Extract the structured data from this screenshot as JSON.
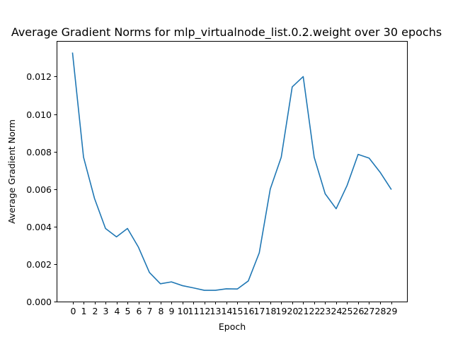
{
  "chart_data": {
    "type": "line",
    "title": "Average Gradient Norms for mlp_virtualnode_list.0.2.weight over 30 epochs",
    "xlabel": "Epoch",
    "ylabel": "Average Gradient Norm",
    "x": [
      0,
      1,
      2,
      3,
      4,
      5,
      6,
      7,
      8,
      9,
      10,
      11,
      12,
      13,
      14,
      15,
      16,
      17,
      18,
      19,
      20,
      21,
      22,
      23,
      24,
      25,
      26,
      27,
      28,
      29
    ],
    "x_tick_labels": [
      "0",
      "1",
      "2",
      "3",
      "4",
      "5",
      "6",
      "7",
      "8",
      "9",
      "10",
      "11",
      "12",
      "13",
      "14",
      "15",
      "16",
      "17",
      "18",
      "19",
      "20",
      "21",
      "22",
      "23",
      "24",
      "25",
      "26",
      "27",
      "28",
      "29"
    ],
    "y_ticks": [
      0.0,
      0.002,
      0.004,
      0.006,
      0.008,
      0.01,
      0.012
    ],
    "y_tick_labels": [
      "0.000",
      "0.002",
      "0.004",
      "0.006",
      "0.008",
      "0.010",
      "0.012"
    ],
    "xlim": [
      -1.45,
      30.45
    ],
    "ylim": [
      0.0,
      0.0139
    ],
    "grid": false,
    "series": [
      {
        "color": "#1f77b4",
        "values": [
          0.01325,
          0.0077,
          0.0055,
          0.0039,
          0.00345,
          0.0039,
          0.0029,
          0.00155,
          0.00095,
          0.00105,
          0.00085,
          0.00073,
          0.0006,
          0.0006,
          0.00068,
          0.00067,
          0.0011,
          0.0026,
          0.006,
          0.0077,
          0.01145,
          0.012,
          0.0077,
          0.00575,
          0.00495,
          0.0062,
          0.00785,
          0.00765,
          0.0069,
          0.006
        ]
      }
    ]
  }
}
